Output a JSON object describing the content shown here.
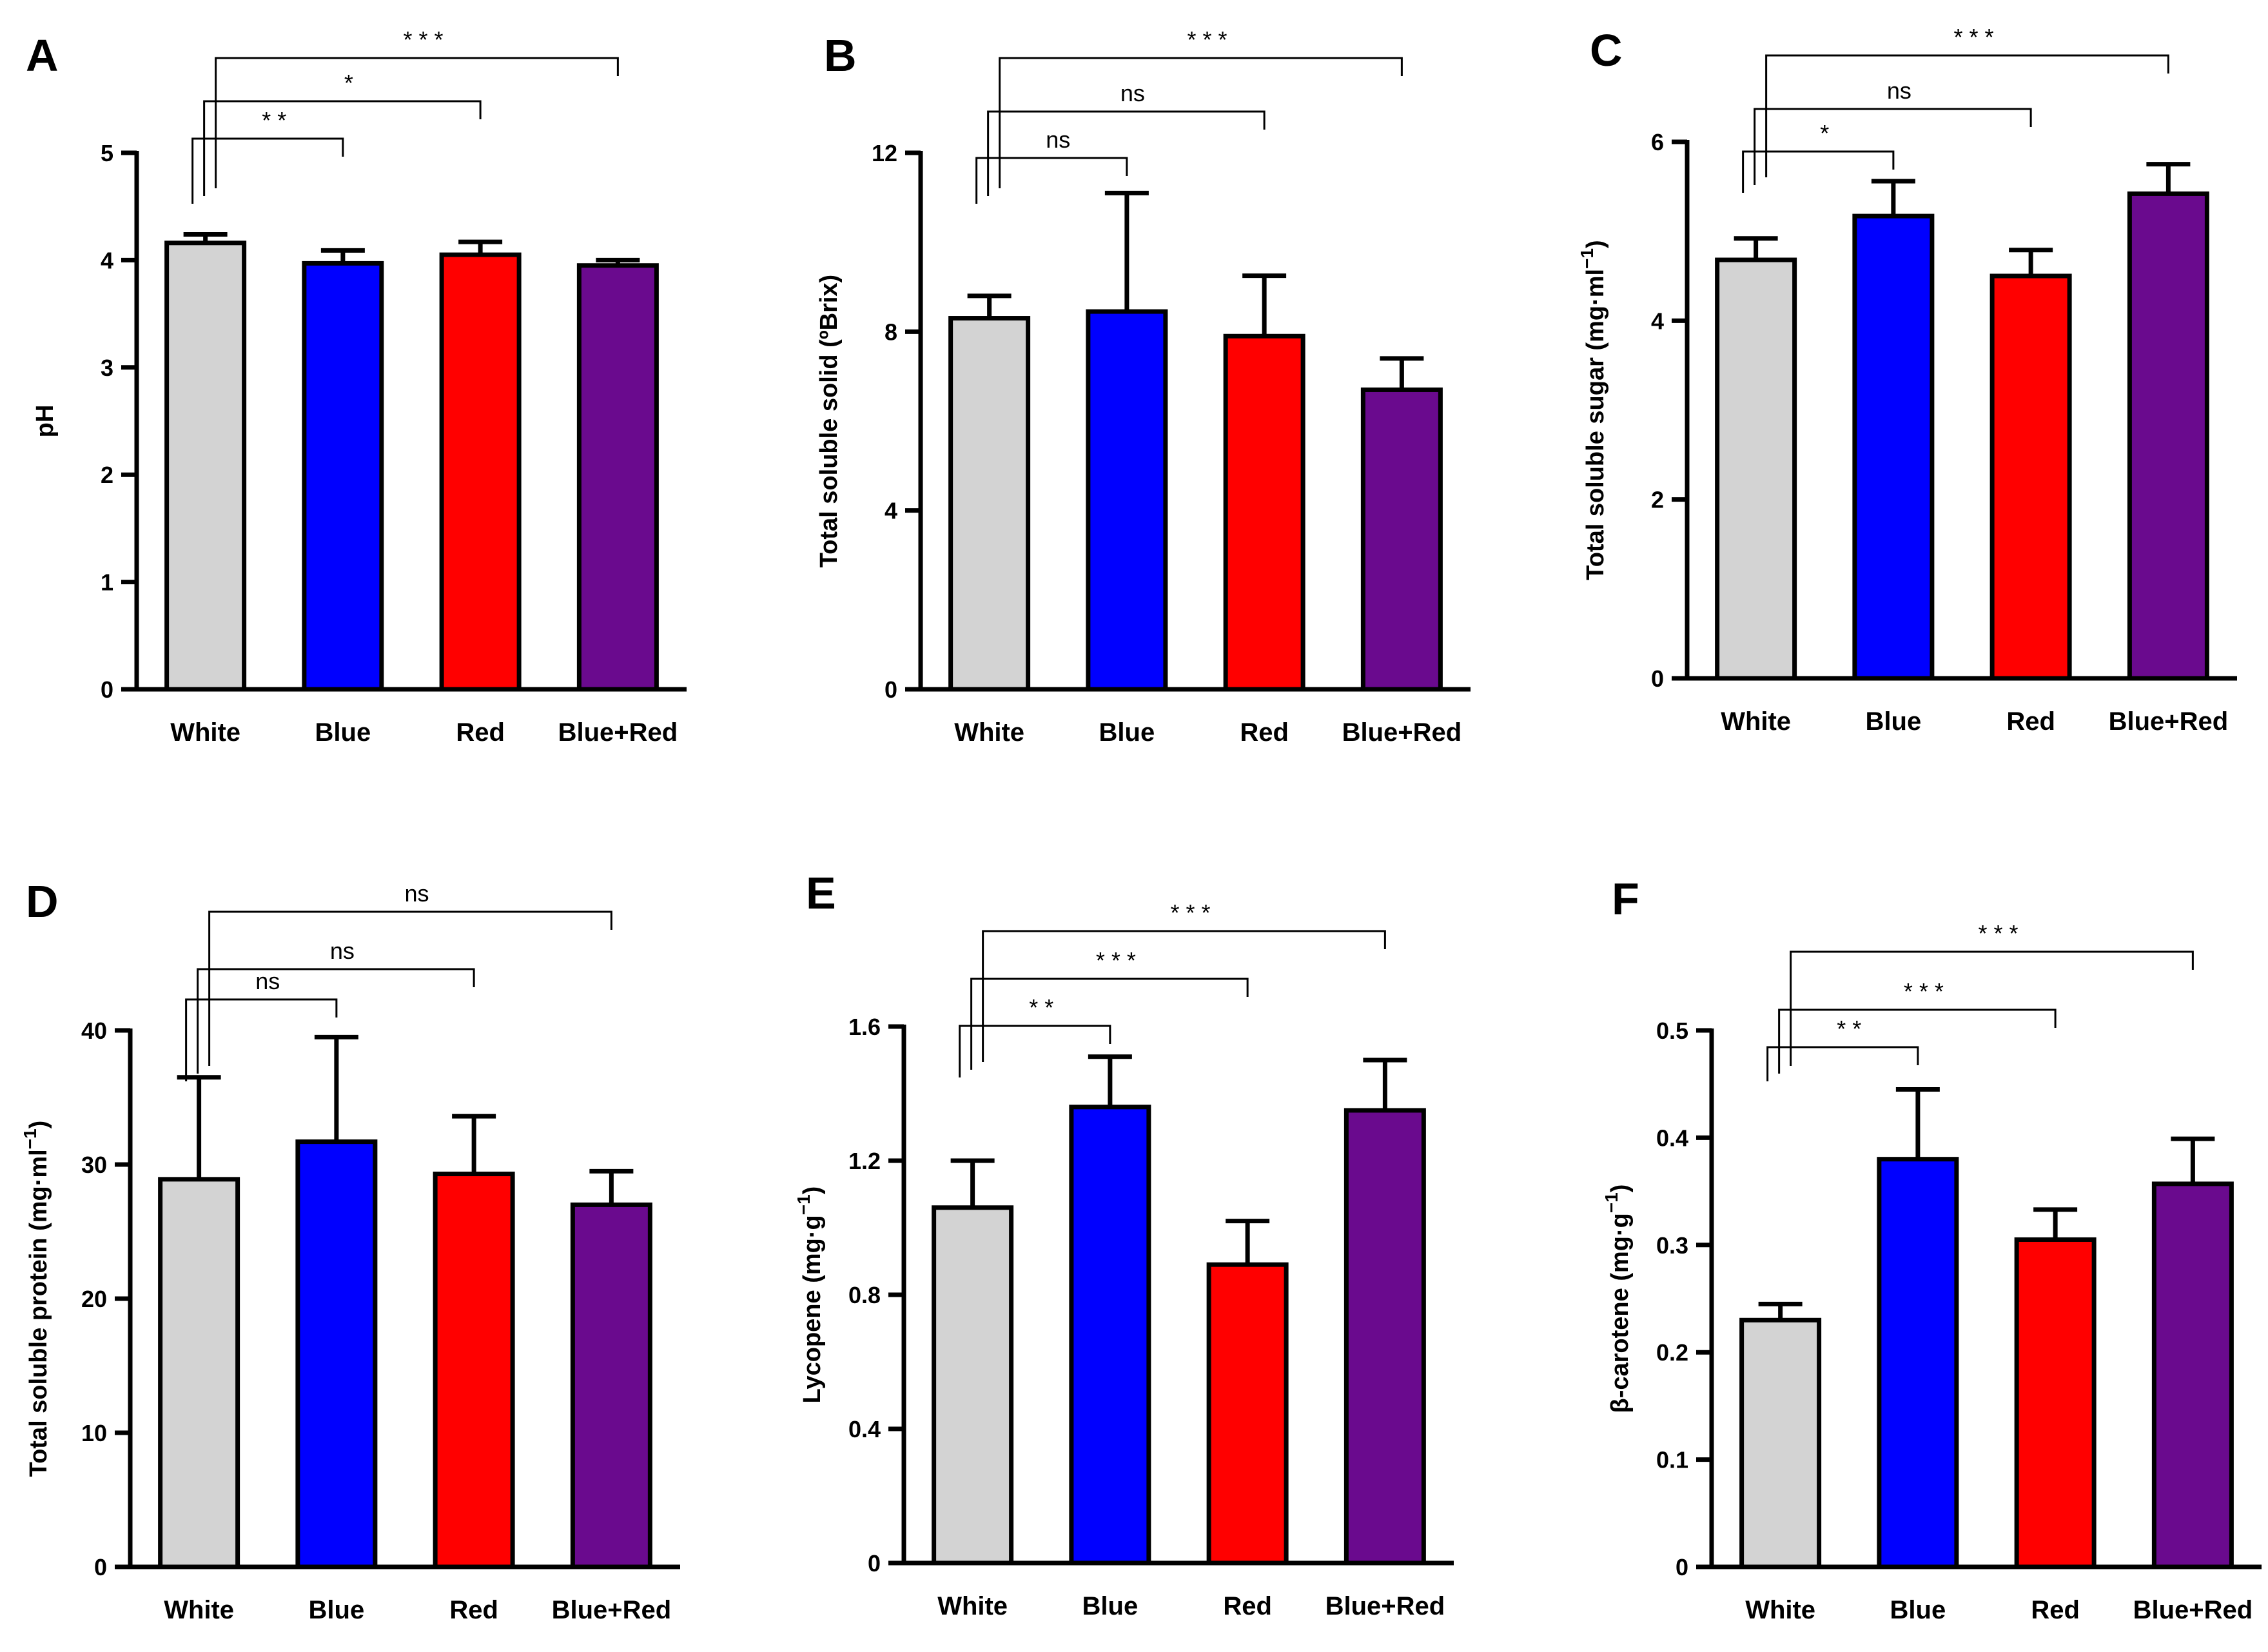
{
  "colors": {
    "White": "#d3d3d3",
    "Blue": "#0000ff",
    "Red": "#ff0000",
    "Blue+Red": "#6a0a8e",
    "axis": "#000000"
  },
  "chart_data": [
    {
      "panel": "A",
      "type": "bar",
      "categories": [
        "White",
        "Blue",
        "Red",
        "Blue+Red"
      ],
      "values": [
        4.16,
        3.97,
        4.05,
        3.95
      ],
      "errors": [
        0.08,
        0.12,
        0.12,
        0.05
      ],
      "ylabel": "pH",
      "ylabel_sup": "",
      "ylim": [
        0,
        5
      ],
      "yticks": [
        0,
        1,
        2,
        3,
        4,
        5
      ],
      "ytick_labels": [
        "0",
        "1",
        "2",
        "3",
        "4",
        "5"
      ],
      "significance": [
        {
          "to": "Blue",
          "label": "* *"
        },
        {
          "to": "Red",
          "label": "*"
        },
        {
          "to": "Blue+Red",
          "label": "* * *"
        }
      ]
    },
    {
      "panel": "B",
      "type": "bar",
      "categories": [
        "White",
        "Blue",
        "Red",
        "Blue+Red"
      ],
      "values": [
        8.3,
        8.45,
        7.9,
        6.7
      ],
      "errors": [
        0.5,
        2.65,
        1.35,
        0.7
      ],
      "ylabel": "Total soluble solid (ºBrix)",
      "ylabel_sup": "",
      "ylim": [
        0,
        12
      ],
      "yticks": [
        0,
        4,
        8,
        12
      ],
      "ytick_labels": [
        "0",
        "4",
        "8",
        "12"
      ],
      "significance": [
        {
          "to": "Blue",
          "label": "ns"
        },
        {
          "to": "Red",
          "label": "ns"
        },
        {
          "to": "Blue+Red",
          "label": "* * *"
        }
      ]
    },
    {
      "panel": "C",
      "type": "bar",
      "categories": [
        "White",
        "Blue",
        "Red",
        "Blue+Red"
      ],
      "values": [
        4.68,
        5.17,
        4.5,
        5.42
      ],
      "errors": [
        0.24,
        0.39,
        0.29,
        0.33
      ],
      "ylabel": "Total soluble sugar (mg·ml",
      "ylabel_sup": "−1",
      "ylabel_tail": ")",
      "ylim": [
        0,
        6
      ],
      "yticks": [
        0,
        2,
        4,
        6
      ],
      "ytick_labels": [
        "0",
        "2",
        "4",
        "6"
      ],
      "significance": [
        {
          "to": "Blue",
          "label": "*"
        },
        {
          "to": "Red",
          "label": "ns"
        },
        {
          "to": "Blue+Red",
          "label": "* * *"
        }
      ]
    },
    {
      "panel": "D",
      "type": "bar",
      "categories": [
        "White",
        "Blue",
        "Red",
        "Blue+Red"
      ],
      "values": [
        28.9,
        31.7,
        29.3,
        27.0
      ],
      "errors": [
        7.6,
        7.8,
        4.3,
        2.5
      ],
      "ylabel": "Total soluble protein (mg·ml",
      "ylabel_sup": "−1",
      "ylabel_tail": ")",
      "ylim": [
        0,
        40
      ],
      "yticks": [
        0,
        10,
        20,
        30,
        40
      ],
      "ytick_labels": [
        "0",
        "10",
        "20",
        "30",
        "40"
      ],
      "significance": [
        {
          "to": "Blue",
          "label": "ns"
        },
        {
          "to": "Red",
          "label": "ns"
        },
        {
          "to": "Blue+Red",
          "label": "ns"
        }
      ]
    },
    {
      "panel": "E",
      "type": "bar",
      "categories": [
        "White",
        "Blue",
        "Red",
        "Blue+Red"
      ],
      "values": [
        1.06,
        1.36,
        0.89,
        1.35
      ],
      "errors": [
        0.14,
        0.15,
        0.13,
        0.15
      ],
      "ylabel": "Lycopene (mg·g",
      "ylabel_sup": "−1",
      "ylabel_tail": ")",
      "ylim": [
        0,
        1.6
      ],
      "yticks": [
        0,
        0.4,
        0.8,
        1.2,
        1.6
      ],
      "ytick_labels": [
        "0",
        "0.4",
        "0.8",
        "1.2",
        "1.6"
      ],
      "significance": [
        {
          "to": "Blue",
          "label": "* *"
        },
        {
          "to": "Red",
          "label": "* * *"
        },
        {
          "to": "Blue+Red",
          "label": "* * *"
        }
      ]
    },
    {
      "panel": "F",
      "type": "bar",
      "categories": [
        "White",
        "Blue",
        "Red",
        "Blue+Red"
      ],
      "values": [
        0.23,
        0.38,
        0.305,
        0.357
      ],
      "errors": [
        0.015,
        0.065,
        0.028,
        0.042
      ],
      "ylabel": "β-carotene (mg·g",
      "ylabel_sup": "−1",
      "ylabel_tail": ")",
      "ylim": [
        0,
        0.5
      ],
      "yticks": [
        0,
        0.1,
        0.2,
        0.3,
        0.4,
        0.5
      ],
      "ytick_labels": [
        "0",
        "0.1",
        "0.2",
        "0.3",
        "0.4",
        "0.5"
      ],
      "significance": [
        {
          "to": "Blue",
          "label": "* *"
        },
        {
          "to": "Red",
          "label": "* * *"
        },
        {
          "to": "Blue+Red",
          "label": "* * *"
        }
      ]
    }
  ]
}
